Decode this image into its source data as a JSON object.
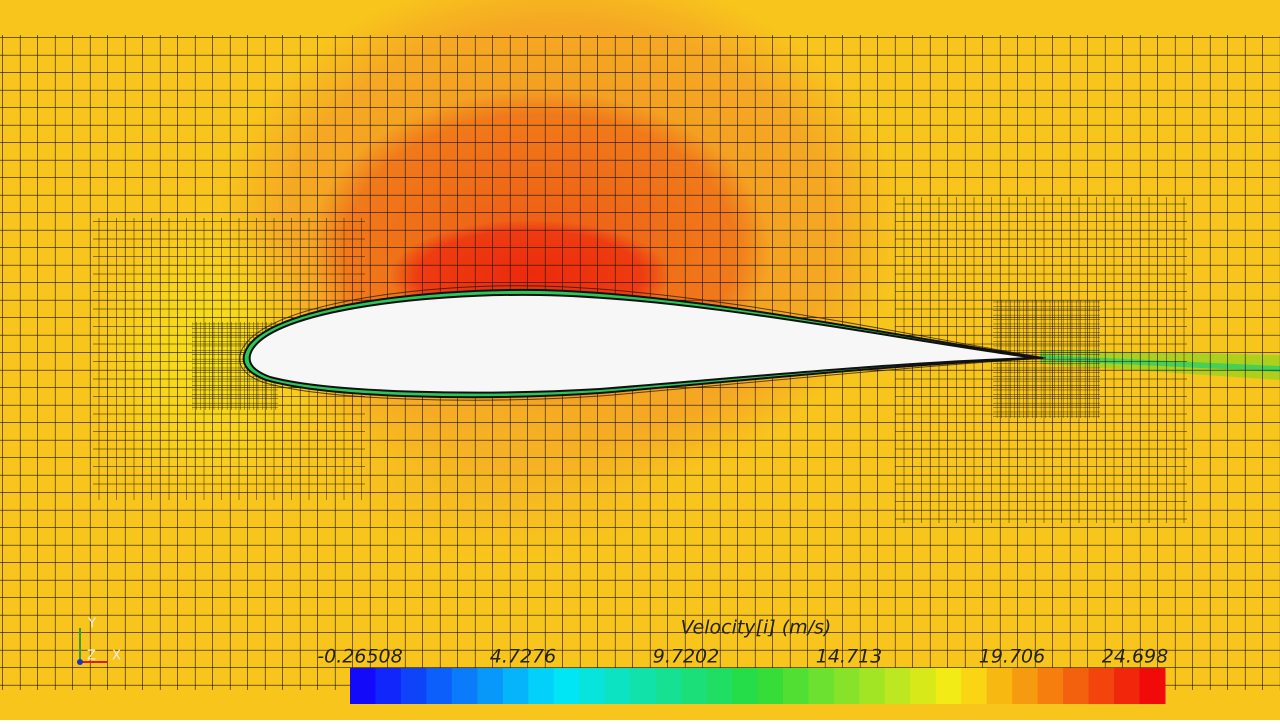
{
  "colorbar": {
    "title": "Velocity[i] (m/s)",
    "ticks": [
      "-0.26508",
      "4.7276",
      "9.7202",
      "14.713",
      "19.706",
      "24.698"
    ]
  },
  "triad": {
    "x": "X",
    "y": "Y",
    "z": "Z"
  }
}
